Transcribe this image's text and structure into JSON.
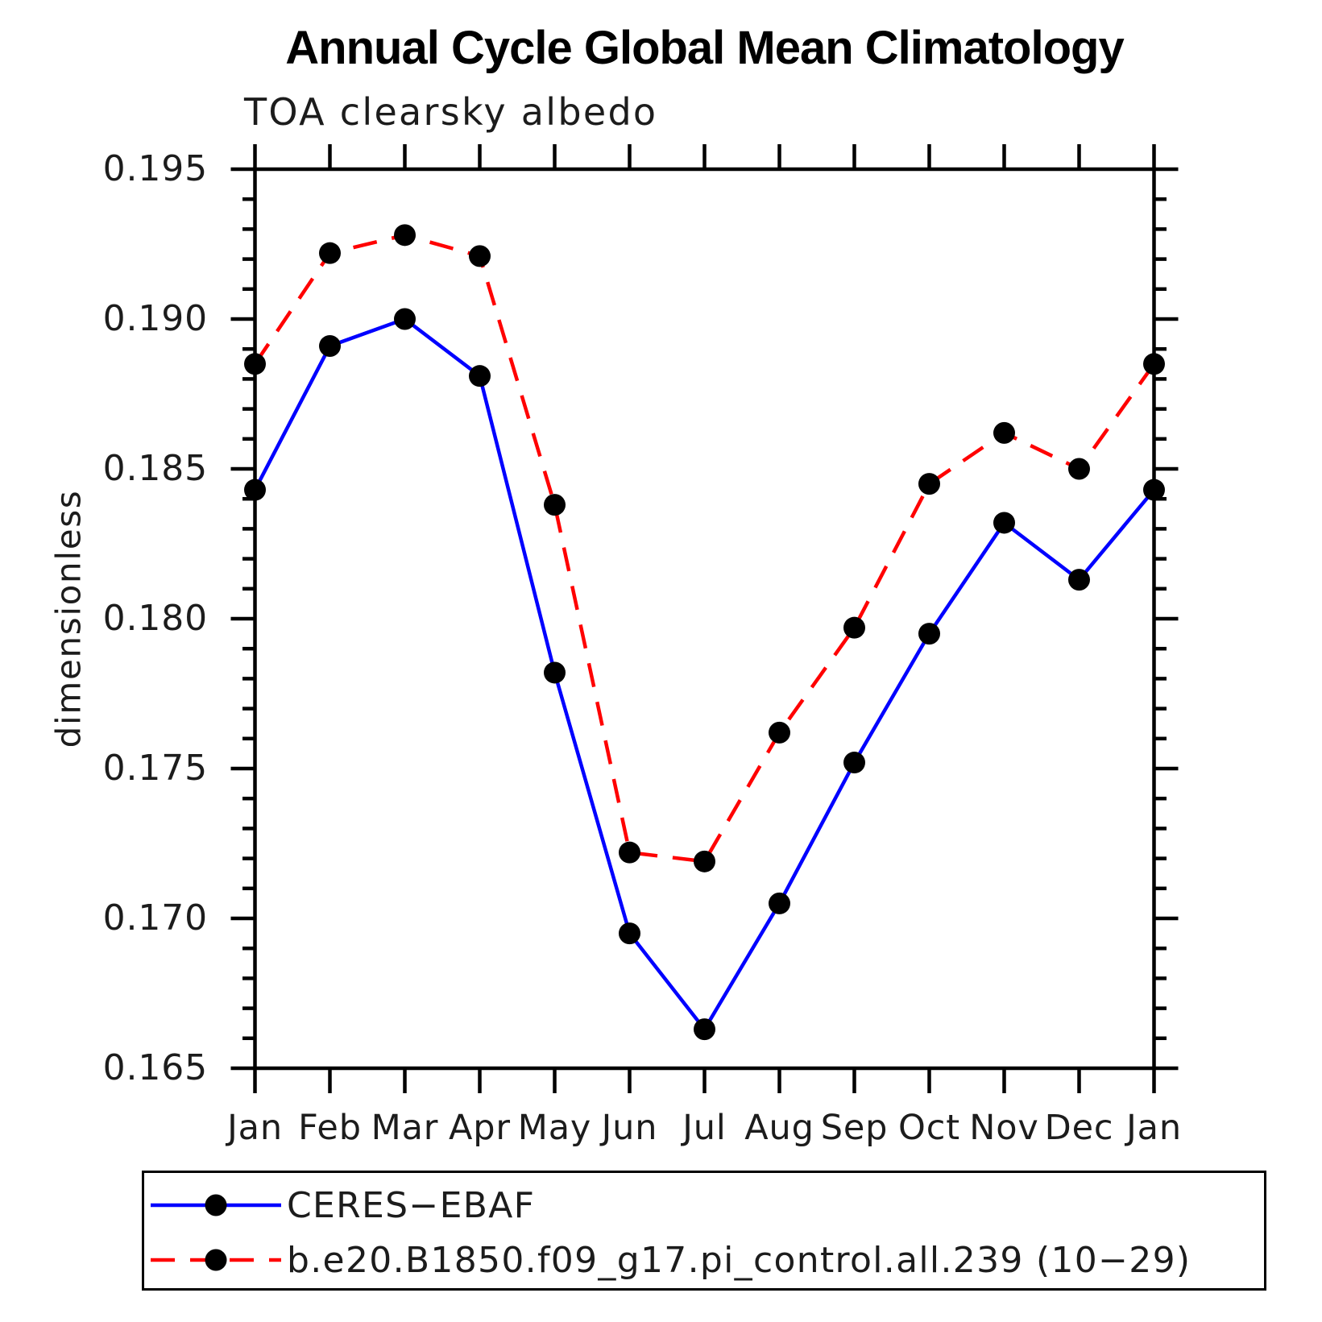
{
  "title": "Annual Cycle Global Mean Climatology",
  "subtitle": "TOA clearsky albedo",
  "colors": {
    "background": "#ffffff",
    "axis": "#000000",
    "text": "#1c1c1c",
    "series_blue": "#0000ff",
    "series_red": "#ff0000",
    "marker": "#000000"
  },
  "legend": {
    "entries": [
      {
        "label": "CERES−EBAF",
        "color": "#0000ff",
        "line_style": "solid",
        "marker": "filled-circle"
      },
      {
        "label": "b.e20.B1850.f09_g17.pi_control.all.239 (10−29)",
        "color": "#ff0000",
        "line_style": "dashed",
        "marker": "filled-circle"
      }
    ]
  },
  "chart_data": {
    "type": "line",
    "title": "Annual Cycle Global Mean Climatology",
    "subtitle": "TOA clearsky albedo",
    "xlabel": "",
    "ylabel": "dimensionless",
    "categories": [
      "Jan",
      "Feb",
      "Mar",
      "Apr",
      "May",
      "Jun",
      "Jul",
      "Aug",
      "Sep",
      "Oct",
      "Nov",
      "Dec",
      "Jan"
    ],
    "series": [
      {
        "name": "CERES−EBAF",
        "color": "#0000ff",
        "line_style": "solid",
        "marker_color": "#000000",
        "values": [
          0.1843,
          0.1891,
          0.19,
          0.1881,
          0.1782,
          0.1695,
          0.1663,
          0.1705,
          0.1752,
          0.1795,
          0.1832,
          0.1813,
          0.1843
        ]
      },
      {
        "name": "b.e20.B1850.f09_g17.pi_control.all.239 (10−29)",
        "color": "#ff0000",
        "line_style": "dashed",
        "marker_color": "#000000",
        "values": [
          0.1885,
          0.1922,
          0.1928,
          0.1921,
          0.1838,
          0.1722,
          0.1719,
          0.1762,
          0.1797,
          0.1845,
          0.1862,
          0.185,
          0.1885
        ]
      }
    ],
    "ylim": [
      0.165,
      0.195
    ],
    "ytick_major": [
      0.195,
      0.19,
      0.185,
      0.18,
      0.175,
      0.17,
      0.165
    ],
    "ytick_labels": [
      "0.195",
      "0.190",
      "0.185",
      "0.180",
      "0.175",
      "0.170",
      "0.165"
    ],
    "ytick_minor_step": 0.001,
    "grid": false,
    "legend_position": "bottom"
  }
}
